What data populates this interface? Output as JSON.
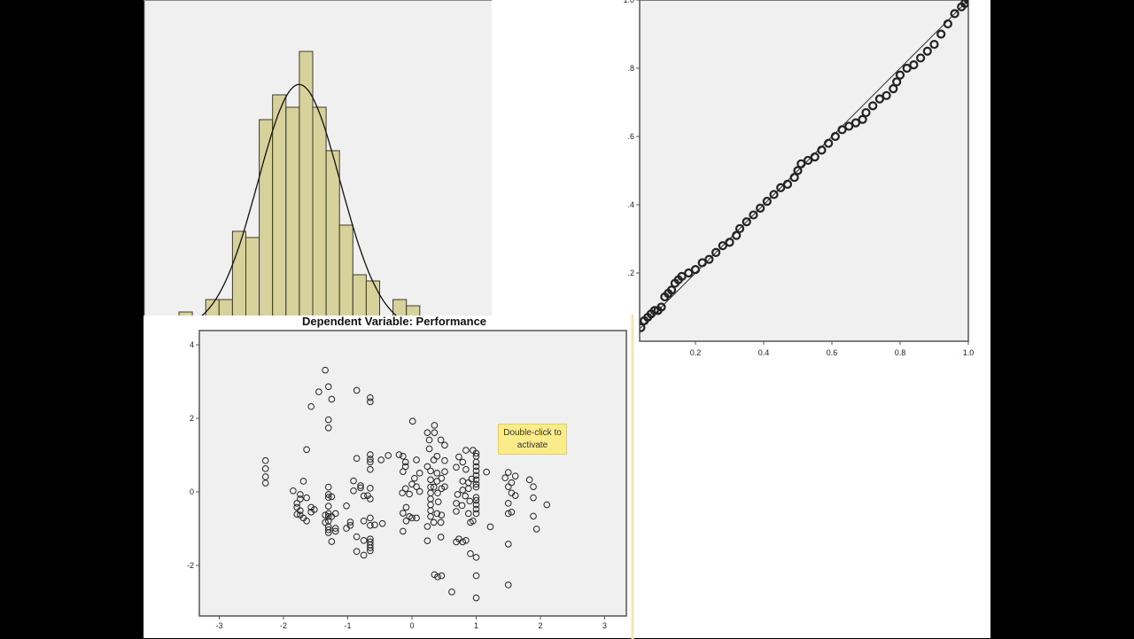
{
  "colors": {
    "bar_fill": "#d7d29c",
    "bar_stroke": "#3b3a2c",
    "plot_bg": "#f0f0f0",
    "axis": "#555555",
    "marker": "#222222",
    "tooltip_bg": "#fbec8a"
  },
  "tooltip": {
    "text_line1": "Double-click to",
    "text_line2": "activate"
  },
  "chart_data": [
    {
      "type": "bar",
      "subtype": "histogram",
      "note_normal_curve": true,
      "values": [
        3,
        0,
        5,
        5,
        16,
        15,
        34,
        38,
        36,
        45,
        36,
        29,
        17,
        9,
        8,
        0,
        5,
        4
      ],
      "grid": false
    },
    {
      "type": "scatter",
      "subtype": "P-P plot",
      "xlim": [
        0.04,
        1.0
      ],
      "ylim": [
        0,
        1.0
      ],
      "x_ticks": [
        "0.2",
        "0.4",
        "0.6",
        "0.8",
        "1.0"
      ],
      "x_tick_values": [
        0.2,
        0.4,
        0.6,
        0.8,
        1.0
      ],
      "y_ticks": [
        ".2",
        ".4",
        ".6",
        ".8",
        "1.0"
      ],
      "y_tick_values": [
        0.2,
        0.4,
        0.6,
        0.8,
        1.0
      ],
      "reference_line": [
        [
          0,
          0
        ],
        [
          1,
          1
        ]
      ],
      "points": [
        [
          0.04,
          0.04
        ],
        [
          0.05,
          0.06
        ],
        [
          0.06,
          0.07
        ],
        [
          0.07,
          0.08
        ],
        [
          0.08,
          0.09
        ],
        [
          0.09,
          0.09
        ],
        [
          0.1,
          0.1
        ],
        [
          0.11,
          0.13
        ],
        [
          0.12,
          0.14
        ],
        [
          0.13,
          0.15
        ],
        [
          0.14,
          0.17
        ],
        [
          0.15,
          0.18
        ],
        [
          0.16,
          0.19
        ],
        [
          0.18,
          0.2
        ],
        [
          0.2,
          0.21
        ],
        [
          0.22,
          0.23
        ],
        [
          0.24,
          0.24
        ],
        [
          0.26,
          0.26
        ],
        [
          0.28,
          0.28
        ],
        [
          0.3,
          0.29
        ],
        [
          0.32,
          0.31
        ],
        [
          0.33,
          0.33
        ],
        [
          0.35,
          0.35
        ],
        [
          0.37,
          0.37
        ],
        [
          0.39,
          0.39
        ],
        [
          0.41,
          0.41
        ],
        [
          0.43,
          0.43
        ],
        [
          0.45,
          0.45
        ],
        [
          0.47,
          0.46
        ],
        [
          0.49,
          0.48
        ],
        [
          0.5,
          0.5
        ],
        [
          0.51,
          0.52
        ],
        [
          0.53,
          0.53
        ],
        [
          0.55,
          0.54
        ],
        [
          0.57,
          0.56
        ],
        [
          0.59,
          0.58
        ],
        [
          0.61,
          0.6
        ],
        [
          0.63,
          0.62
        ],
        [
          0.65,
          0.63
        ],
        [
          0.67,
          0.64
        ],
        [
          0.69,
          0.65
        ],
        [
          0.7,
          0.67
        ],
        [
          0.72,
          0.69
        ],
        [
          0.74,
          0.71
        ],
        [
          0.76,
          0.72
        ],
        [
          0.78,
          0.74
        ],
        [
          0.79,
          0.76
        ],
        [
          0.8,
          0.78
        ],
        [
          0.82,
          0.8
        ],
        [
          0.84,
          0.81
        ],
        [
          0.86,
          0.83
        ],
        [
          0.88,
          0.85
        ],
        [
          0.9,
          0.87
        ],
        [
          0.92,
          0.9
        ],
        [
          0.94,
          0.93
        ],
        [
          0.96,
          0.96
        ],
        [
          0.98,
          0.98
        ],
        [
          0.99,
          0.99
        ],
        [
          1.0,
          1.0
        ]
      ]
    },
    {
      "type": "scatter",
      "title": "Dependent Variable: Performance",
      "xlim": [
        -3.3,
        3.3
      ],
      "ylim": [
        -3.4,
        4.4
      ],
      "x_ticks": [
        "-3",
        "-2",
        "-1",
        "0",
        "1",
        "2",
        "3"
      ],
      "x_tick_values": [
        -3,
        -2,
        -1,
        0,
        1,
        2,
        3
      ],
      "y_ticks": [
        "4",
        "2",
        "0",
        "-2"
      ],
      "y_tick_values": [
        4,
        2,
        0,
        -2
      ],
      "grid": false,
      "points": [
        [
          -1.35,
          3.31
        ],
        [
          -1.3,
          2.86
        ],
        [
          -1.25,
          2.52
        ],
        [
          -1.45,
          2.72
        ],
        [
          -1.57,
          2.32
        ],
        [
          -0.86,
          2.76
        ],
        [
          -0.65,
          2.56
        ],
        [
          -0.65,
          2.45
        ],
        [
          -1.3,
          1.96
        ],
        [
          -1.3,
          1.74
        ],
        [
          -1.64,
          1.15
        ],
        [
          -2.28,
          0.85
        ],
        [
          -2.28,
          0.63
        ],
        [
          -2.28,
          0.41
        ],
        [
          -2.28,
          0.24
        ],
        [
          0.01,
          1.92
        ],
        [
          0.35,
          1.81
        ],
        [
          0.24,
          1.61
        ],
        [
          0.35,
          1.61
        ],
        [
          0.27,
          1.41
        ],
        [
          0.45,
          1.41
        ],
        [
          0.51,
          1.27
        ],
        [
          0.27,
          1.17
        ],
        [
          -0.86,
          0.91
        ],
        [
          -0.65,
          1.01
        ],
        [
          -0.65,
          0.89
        ],
        [
          -0.65,
          0.81
        ],
        [
          -0.65,
          0.61
        ],
        [
          -0.48,
          0.87
        ],
        [
          -0.37,
          0.99
        ],
        [
          -0.2,
          1.01
        ],
        [
          -0.14,
          0.97
        ],
        [
          -0.1,
          0.81
        ],
        [
          -0.1,
          0.69
        ],
        [
          -0.14,
          0.55
        ],
        [
          0.07,
          0.87
        ],
        [
          0.39,
          0.97
        ],
        [
          0.34,
          0.87
        ],
        [
          0.51,
          0.85
        ],
        [
          0.24,
          0.69
        ],
        [
          0.29,
          0.57
        ],
        [
          0.39,
          0.51
        ],
        [
          0.51,
          0.55
        ],
        [
          0.12,
          0.51
        ],
        [
          0.69,
          0.67
        ],
        [
          0.73,
          0.95
        ],
        [
          0.79,
          0.81
        ],
        [
          0.84,
          1.13
        ],
        [
          0.95,
          1.13
        ],
        [
          1.0,
          1.05
        ],
        [
          1.0,
          0.97
        ],
        [
          1.0,
          0.81
        ],
        [
          1.0,
          0.69
        ],
        [
          1.0,
          0.57
        ],
        [
          1.0,
          0.45
        ],
        [
          1.0,
          0.33
        ],
        [
          1.0,
          0.21
        ],
        [
          1.0,
          0.13
        ],
        [
          1.0,
          -0.15
        ],
        [
          1.0,
          -0.23
        ],
        [
          1.0,
          -0.35
        ],
        [
          1.0,
          -0.47
        ],
        [
          1.0,
          -0.59
        ],
        [
          0.84,
          0.61
        ],
        [
          0.88,
          0.25
        ],
        [
          0.88,
          0.09
        ],
        [
          0.83,
          -0.11
        ],
        [
          0.79,
          0.05
        ],
        [
          0.71,
          -0.07
        ],
        [
          0.69,
          -0.31
        ],
        [
          0.69,
          -0.53
        ],
        [
          0.88,
          -0.59
        ],
        [
          0.91,
          -0.83
        ],
        [
          0.95,
          -0.79
        ],
        [
          0.79,
          0.29
        ],
        [
          0.93,
          0.35
        ],
        [
          0.9,
          -0.25
        ],
        [
          0.78,
          -0.37
        ],
        [
          1.16,
          0.54
        ],
        [
          1.5,
          0.53
        ],
        [
          1.45,
          0.38
        ],
        [
          1.5,
          0.14
        ],
        [
          1.55,
          0.25
        ],
        [
          1.61,
          0.43
        ],
        [
          1.61,
          -0.1
        ],
        [
          1.55,
          -0.03
        ],
        [
          1.5,
          -0.31
        ],
        [
          1.5,
          -0.59
        ],
        [
          1.55,
          -0.55
        ],
        [
          1.83,
          0.33
        ],
        [
          1.89,
          0.14
        ],
        [
          1.89,
          -0.16
        ],
        [
          1.89,
          -0.66
        ],
        [
          1.94,
          -1.01
        ],
        [
          2.1,
          -0.35
        ],
        [
          1.22,
          -0.95
        ],
        [
          1.5,
          -1.42
        ],
        [
          1.5,
          -2.53
        ],
        [
          1.0,
          -1.78
        ],
        [
          1.0,
          -2.28
        ],
        [
          1.0,
          -2.88
        ],
        [
          0.91,
          -1.68
        ],
        [
          0.62,
          -2.72
        ],
        [
          0.35,
          -2.25
        ],
        [
          0.4,
          -2.31
        ],
        [
          0.46,
          -2.28
        ],
        [
          0.73,
          -1.28
        ],
        [
          0.84,
          -1.32
        ],
        [
          0.69,
          -1.36
        ],
        [
          0.79,
          -1.36
        ],
        [
          0.24,
          -1.33
        ],
        [
          0.24,
          -0.94
        ],
        [
          0.45,
          -1.23
        ],
        [
          0.34,
          -0.83
        ],
        [
          0.45,
          -0.83
        ],
        [
          0.29,
          0.33
        ],
        [
          0.29,
          0.13
        ],
        [
          0.29,
          -0.03
        ],
        [
          0.29,
          -0.19
        ],
        [
          0.29,
          -0.35
        ],
        [
          0.29,
          -0.51
        ],
        [
          0.29,
          -0.67
        ],
        [
          0.39,
          0.29
        ],
        [
          0.46,
          0.37
        ],
        [
          0.41,
          -0.27
        ],
        [
          0.39,
          -0.59
        ],
        [
          0.46,
          -0.63
        ],
        [
          0.34,
          0.13
        ],
        [
          0.4,
          -0.03
        ],
        [
          0.46,
          0.09
        ],
        [
          0.51,
          0.14
        ],
        [
          -0.15,
          -0.03
        ],
        [
          -0.1,
          0.09
        ],
        [
          -0.04,
          -0.06
        ],
        [
          0.07,
          0.14
        ],
        [
          0.12,
          0.01
        ],
        [
          0.0,
          0.21
        ],
        [
          0.04,
          0.37
        ],
        [
          -0.09,
          -0.42
        ],
        [
          -0.14,
          -0.58
        ],
        [
          -0.04,
          -0.67
        ],
        [
          0.07,
          -0.71
        ],
        [
          0.0,
          -0.71
        ],
        [
          -0.14,
          -1.07
        ],
        [
          -0.09,
          -0.79
        ],
        [
          -0.65,
          0.1
        ],
        [
          -0.65,
          -0.19
        ],
        [
          -0.65,
          -0.71
        ],
        [
          -0.65,
          -0.91
        ],
        [
          -0.65,
          -1.28
        ],
        [
          -0.65,
          -1.36
        ],
        [
          -0.65,
          -1.44
        ],
        [
          -0.65,
          -1.52
        ],
        [
          -0.65,
          -1.6
        ],
        [
          -0.91,
          0.3
        ],
        [
          -0.91,
          0.03
        ],
        [
          -0.8,
          0.17
        ],
        [
          -0.8,
          0.11
        ],
        [
          -0.75,
          -0.11
        ],
        [
          -0.69,
          -0.1
        ],
        [
          -0.75,
          -0.79
        ],
        [
          -0.58,
          -0.9
        ],
        [
          -0.46,
          -0.86
        ],
        [
          -0.86,
          -1.22
        ],
        [
          -0.75,
          -1.32
        ],
        [
          -0.86,
          -1.62
        ],
        [
          -0.75,
          -1.72
        ],
        [
          -1.02,
          -0.38
        ],
        [
          -1.02,
          -0.99
        ],
        [
          -0.96,
          -0.82
        ],
        [
          -0.96,
          -0.91
        ],
        [
          -1.3,
          0.13
        ],
        [
          -1.3,
          -0.07
        ],
        [
          -1.3,
          -0.15
        ],
        [
          -1.3,
          -0.39
        ],
        [
          -1.3,
          -0.59
        ],
        [
          -1.3,
          -0.67
        ],
        [
          -1.3,
          -0.79
        ],
        [
          -1.3,
          -0.95
        ],
        [
          -1.3,
          -1.03
        ],
        [
          -1.3,
          -1.11
        ],
        [
          -1.25,
          -0.13
        ],
        [
          -1.25,
          -0.67
        ],
        [
          -1.25,
          -1.35
        ],
        [
          -1.19,
          -0.59
        ],
        [
          -1.19,
          -0.99
        ],
        [
          -1.19,
          -1.07
        ],
        [
          -1.35,
          -0.63
        ],
        [
          -1.35,
          -0.83
        ],
        [
          -1.85,
          0.03
        ],
        [
          -1.74,
          -0.07
        ],
        [
          -1.74,
          -0.19
        ],
        [
          -1.69,
          0.29
        ],
        [
          -1.64,
          -0.16
        ],
        [
          -1.79,
          -0.31
        ],
        [
          -1.79,
          -0.42
        ],
        [
          -1.74,
          -0.51
        ],
        [
          -1.79,
          -0.61
        ],
        [
          -1.74,
          -0.63
        ],
        [
          -1.69,
          -0.71
        ],
        [
          -1.64,
          -0.79
        ],
        [
          -1.57,
          -0.42
        ],
        [
          -1.52,
          -0.48
        ],
        [
          -1.57,
          -0.55
        ]
      ]
    }
  ]
}
